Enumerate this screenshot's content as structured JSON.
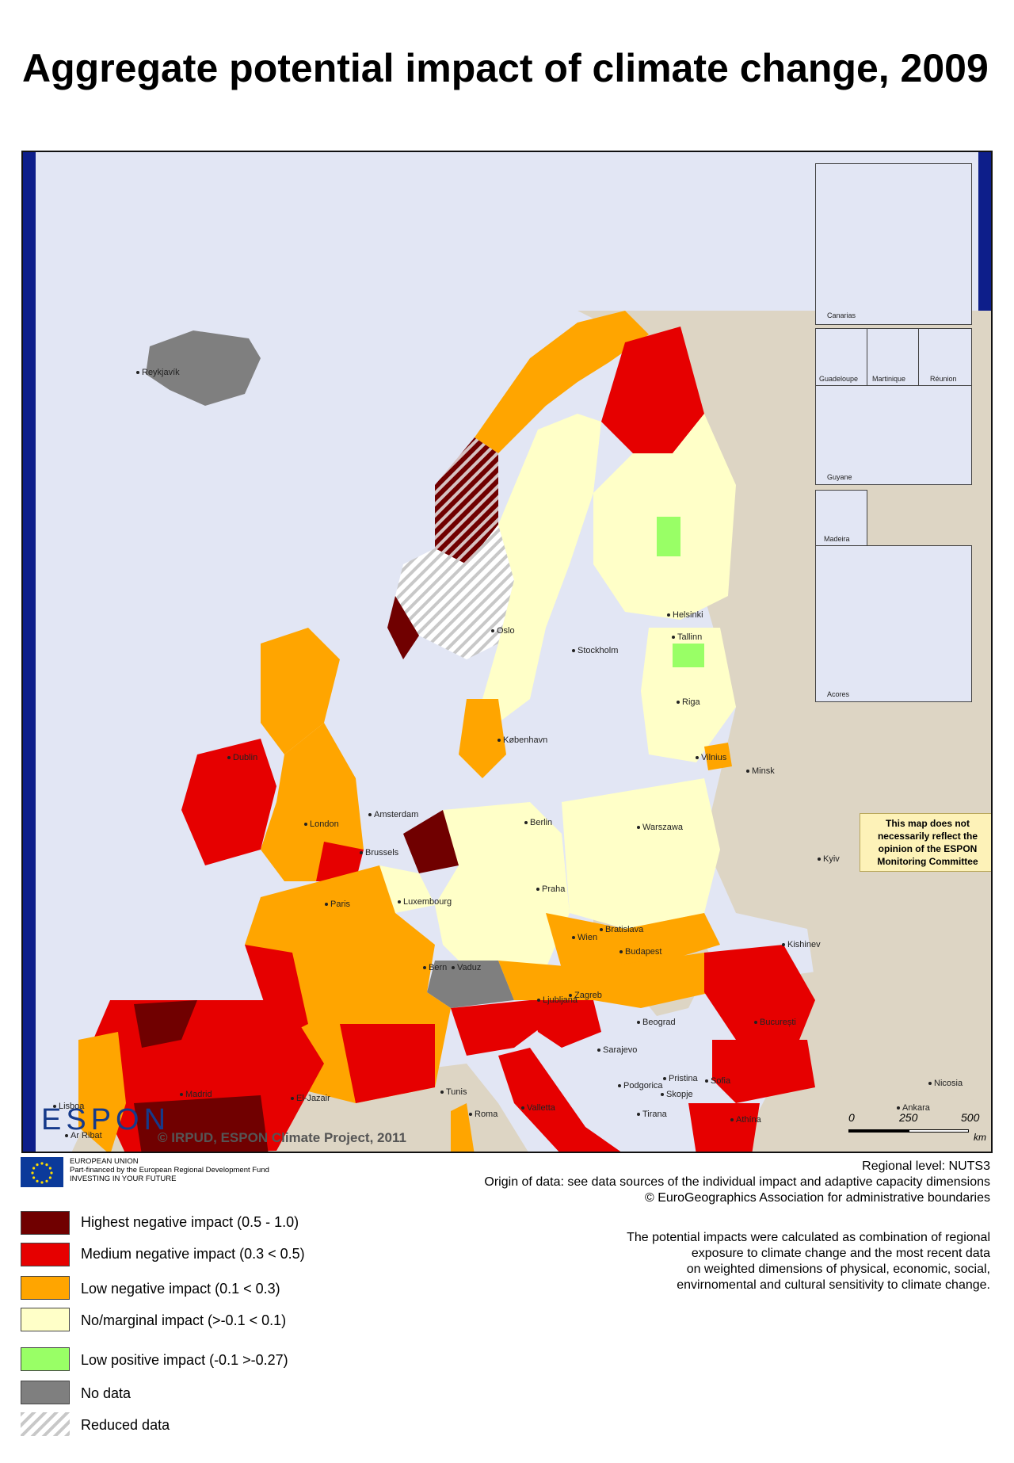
{
  "title": "Aggregate potential impact of climate change, 2009",
  "colors": {
    "sea": "#e2e6f4",
    "land_other": "#ddd5c4",
    "highest": "#700000",
    "medium": "#e60000",
    "low_negative": "#ffa500",
    "no_marginal": "#ffffc8",
    "low_positive": "#99ff66",
    "no_data": "#7f7f7f",
    "frame_bar": "#0d1e8a"
  },
  "map": {
    "cities": [
      "Reykjavík",
      "Dublin",
      "Oslo",
      "Stockholm",
      "Helsinki",
      "Tallinn",
      "Riga",
      "København",
      "Vilnius",
      "Minsk",
      "Amsterdam",
      "Berlin",
      "Warszawa",
      "London",
      "Brussels",
      "Luxembourg",
      "Paris",
      "Praha",
      "Kyiv",
      "Wien",
      "Bratislava",
      "Budapest",
      "Kishinev",
      "Bern",
      "Vaduz",
      "Ljubljana",
      "Zagreb",
      "Beograd",
      "București",
      "Sarajevo",
      "Lisboa",
      "Madrid",
      "Roma",
      "Pristina",
      "Podgorica",
      "Skopje",
      "Sofia",
      "Tirana",
      "Athína",
      "Ankara",
      "El-Jazair",
      "Tunis",
      "Ar Ribat",
      "Valletta",
      "Nicosia"
    ],
    "insets": [
      "Canarias",
      "Guadeloupe",
      "Martinique",
      "Réunion",
      "Guyane",
      "Madeira",
      "Acores"
    ],
    "disclaimer": "This map does not necessarily reflect the opinion of the ESPON Monitoring Committee",
    "logo_text": "ESPON",
    "copyright": "© IRPUD, ESPON Climate Project, 2011",
    "scale": {
      "ticks": [
        "0",
        "250",
        "500"
      ],
      "unit": "km"
    }
  },
  "eu_note": {
    "line1": "EUROPEAN UNION",
    "line2": "Part-financed by the European Regional Development Fund",
    "line3": "INVESTING IN YOUR FUTURE"
  },
  "sources": {
    "line1": "Regional level: NUTS3",
    "line2": "Origin of data: see data sources of the individual impact and adaptive capacity dimensions",
    "line3": "© EuroGeographics Association for administrative boundaries"
  },
  "method_note": {
    "line1": "The potential impacts were calculated as combination of regional",
    "line2": "exposure to climate change and the most recent data",
    "line3": "on weighted dimensions of physical, economic, social,",
    "line4": "envirnomental and cultural sensitivity to climate change."
  },
  "legend": [
    {
      "label": "Highest negative impact (0.5 - 1.0)",
      "color": "#700000"
    },
    {
      "label": "Medium negative impact (0.3 < 0.5)",
      "color": "#e60000"
    },
    {
      "label": "Low negative impact (0.1 < 0.3)",
      "color": "#ffa500"
    },
    {
      "label": "No/marginal impact (>-0.1 < 0.1)",
      "color": "#ffffc8"
    },
    {
      "label": "Low positive impact (-0.1 >-0.27)",
      "color": "#99ff66"
    },
    {
      "label": "No data",
      "color": "#7f7f7f"
    },
    {
      "label": "Reduced data",
      "color": "hatch"
    }
  ]
}
